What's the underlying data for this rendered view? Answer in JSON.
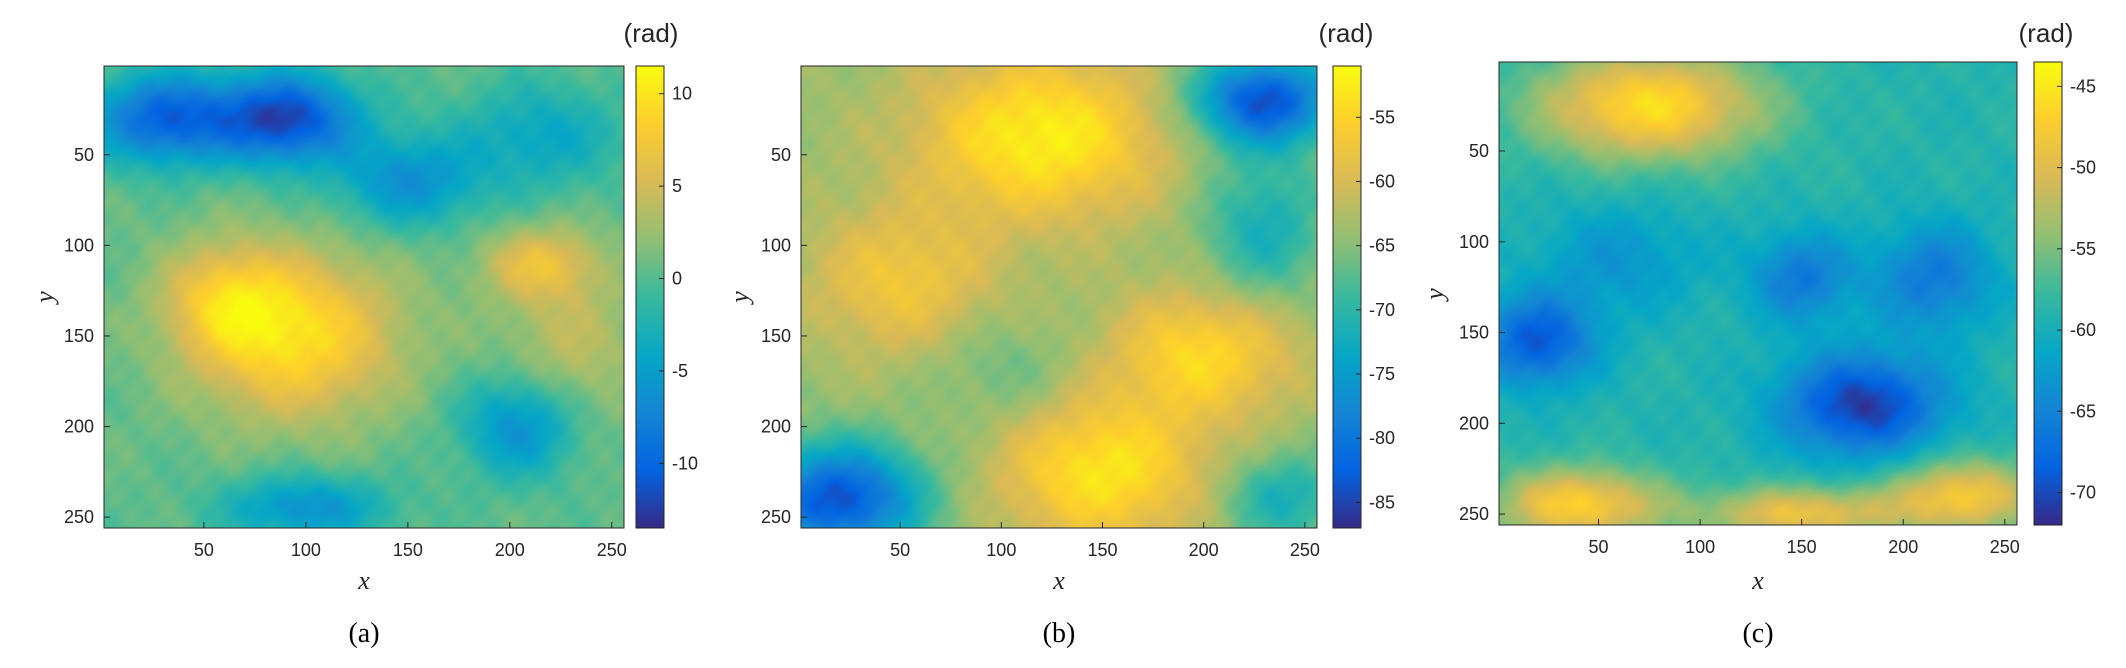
{
  "chart_data": [
    {
      "type": "heatmap",
      "caption": "(a)",
      "xlabel": "x",
      "ylabel": "y",
      "colorbar_unit": "(rad)",
      "colormap": "parula",
      "xlim": [
        1,
        256
      ],
      "ylim": [
        1,
        256
      ],
      "y_reversed": true,
      "xticks": [
        50,
        100,
        150,
        200,
        250
      ],
      "yticks": [
        50,
        100,
        150,
        200,
        250
      ],
      "clim": [
        -13.5,
        11.5
      ],
      "colorbar_ticks": [
        10,
        5,
        0,
        -5,
        -10
      ],
      "blobs": [
        {
          "x": 95,
          "y": 150,
          "rx": 50,
          "ry": 45,
          "value": 9.5
        },
        {
          "x": 60,
          "y": 130,
          "rx": 30,
          "ry": 30,
          "value": 6.0
        },
        {
          "x": 215,
          "y": 110,
          "rx": 28,
          "ry": 20,
          "value": 6.0
        },
        {
          "x": 230,
          "y": 155,
          "rx": 35,
          "ry": 45,
          "value": 4.0
        },
        {
          "x": 30,
          "y": 30,
          "rx": 35,
          "ry": 25,
          "value": -10.0
        },
        {
          "x": 90,
          "y": 30,
          "rx": 35,
          "ry": 25,
          "value": -12.0
        },
        {
          "x": 150,
          "y": 65,
          "rx": 35,
          "ry": 25,
          "value": -6.0
        },
        {
          "x": 215,
          "y": 40,
          "rx": 40,
          "ry": 30,
          "value": -4.0
        },
        {
          "x": 205,
          "y": 200,
          "rx": 28,
          "ry": 28,
          "value": -6.5
        },
        {
          "x": 100,
          "y": 245,
          "rx": 40,
          "ry": 18,
          "value": -6.0
        }
      ],
      "base_value": 0.5
    },
    {
      "type": "heatmap",
      "caption": "(b)",
      "xlabel": "x",
      "ylabel": "y",
      "colorbar_unit": "(rad)",
      "colormap": "parula",
      "xlim": [
        1,
        256
      ],
      "ylim": [
        1,
        256
      ],
      "y_reversed": true,
      "xticks": [
        50,
        100,
        150,
        200,
        250
      ],
      "yticks": [
        50,
        100,
        150,
        200,
        250
      ],
      "clim": [
        -87,
        -51
      ],
      "colorbar_ticks": [
        -55,
        -60,
        -65,
        -70,
        -75,
        -80,
        -85
      ],
      "blobs": [
        {
          "x": 120,
          "y": 40,
          "rx": 60,
          "ry": 45,
          "value": -52.0
        },
        {
          "x": 50,
          "y": 120,
          "rx": 45,
          "ry": 40,
          "value": -57.0
        },
        {
          "x": 150,
          "y": 225,
          "rx": 50,
          "ry": 40,
          "value": -53.0
        },
        {
          "x": 200,
          "y": 160,
          "rx": 45,
          "ry": 35,
          "value": -54.5
        },
        {
          "x": 230,
          "y": 20,
          "rx": 35,
          "ry": 25,
          "value": -84.0
        },
        {
          "x": 230,
          "y": 90,
          "rx": 30,
          "ry": 40,
          "value": -72.0
        },
        {
          "x": 20,
          "y": 240,
          "rx": 40,
          "ry": 30,
          "value": -84.0
        },
        {
          "x": 100,
          "y": 170,
          "rx": 35,
          "ry": 30,
          "value": -67.0
        },
        {
          "x": 240,
          "y": 240,
          "rx": 30,
          "ry": 25,
          "value": -72.0
        }
      ],
      "base_value": -64.0
    },
    {
      "type": "heatmap",
      "caption": "(c)",
      "xlabel": "x",
      "ylabel": "y",
      "colorbar_unit": "(rad)",
      "colormap": "parula",
      "xlim": [
        1,
        256
      ],
      "ylim": [
        1,
        256
      ],
      "y_reversed": true,
      "xticks": [
        50,
        100,
        150,
        200,
        250
      ],
      "yticks": [
        50,
        100,
        150,
        200,
        250
      ],
      "clim": [
        -72,
        -43.5
      ],
      "colorbar_ticks": [
        -45,
        -50,
        -55,
        -60,
        -65,
        -70
      ],
      "blobs": [
        {
          "x": 75,
          "y": 25,
          "rx": 55,
          "ry": 30,
          "value": -46.0
        },
        {
          "x": 40,
          "y": 245,
          "rx": 40,
          "ry": 20,
          "value": -47.0
        },
        {
          "x": 150,
          "y": 250,
          "rx": 50,
          "ry": 15,
          "value": -49.0
        },
        {
          "x": 230,
          "y": 240,
          "rx": 35,
          "ry": 20,
          "value": -48.0
        },
        {
          "x": 20,
          "y": 155,
          "rx": 28,
          "ry": 25,
          "value": -69.0
        },
        {
          "x": 180,
          "y": 190,
          "rx": 40,
          "ry": 28,
          "value": -71.0
        },
        {
          "x": 215,
          "y": 120,
          "rx": 30,
          "ry": 30,
          "value": -66.0
        },
        {
          "x": 150,
          "y": 120,
          "rx": 25,
          "ry": 25,
          "value": -66.0
        },
        {
          "x": 60,
          "y": 110,
          "rx": 40,
          "ry": 30,
          "value": -63.0
        }
      ],
      "base_value": -59.0
    }
  ]
}
